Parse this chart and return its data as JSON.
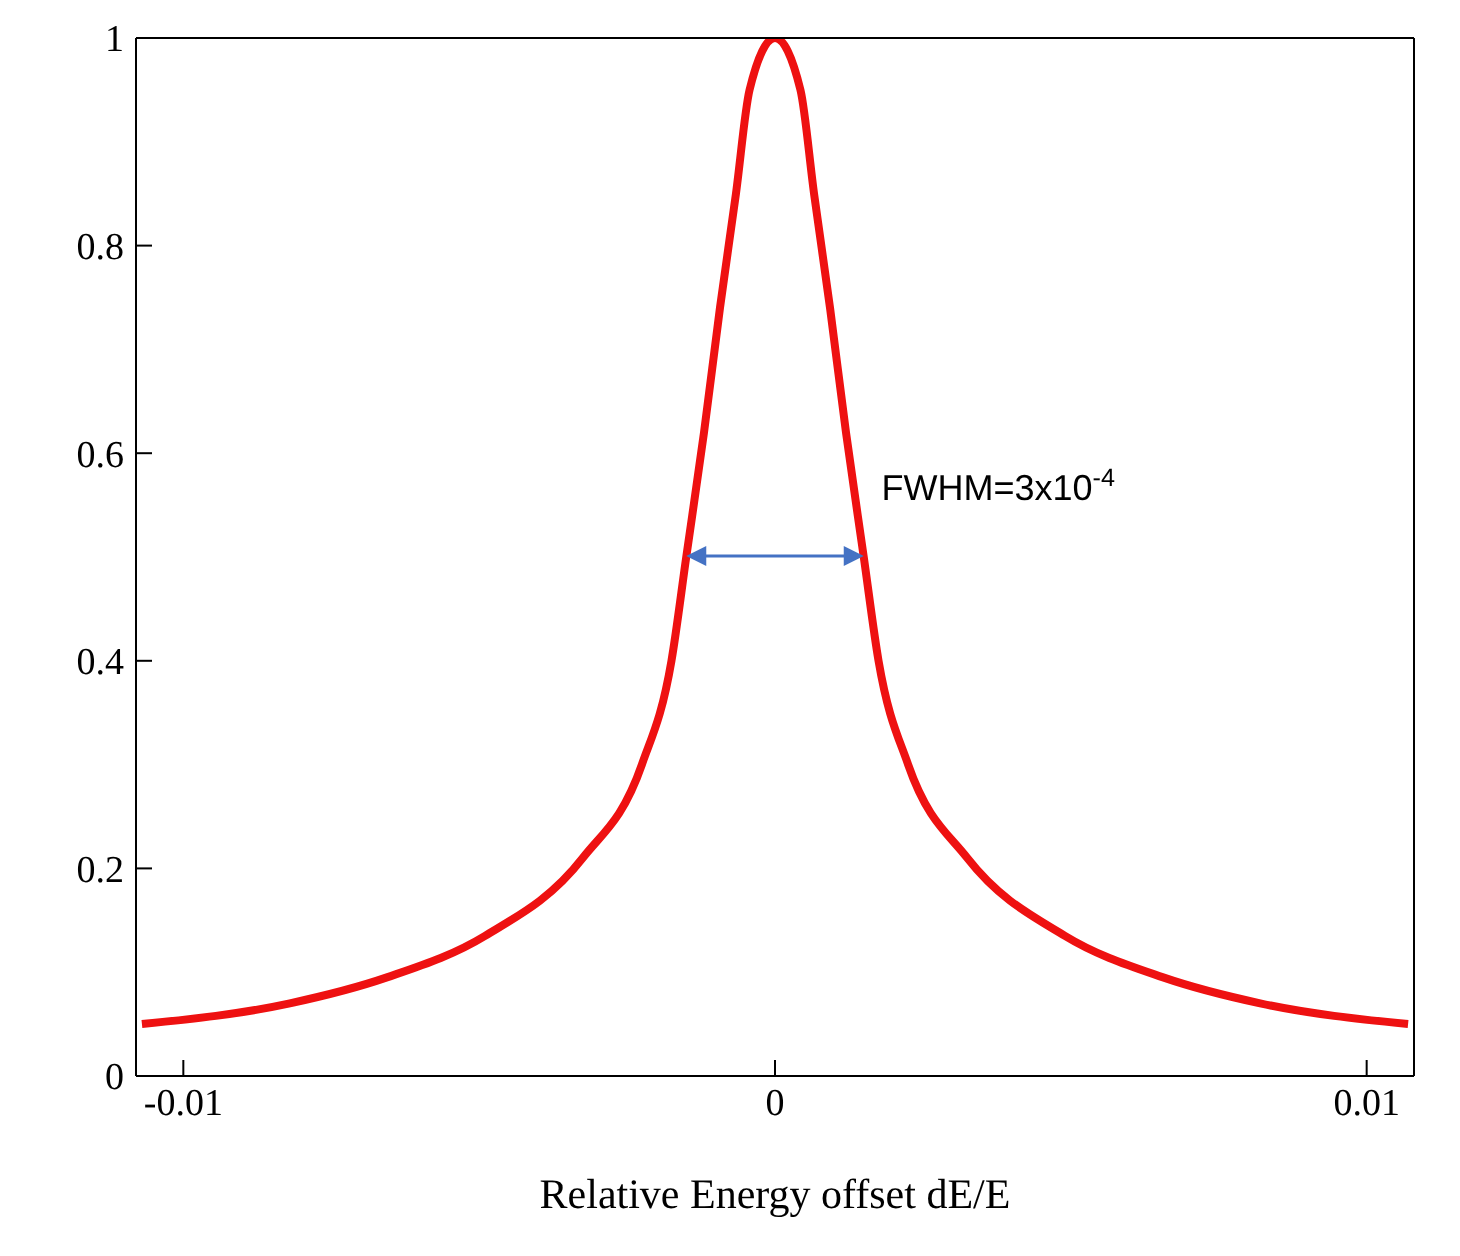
{
  "chart_data": {
    "type": "line",
    "xlabel": "Relative Energy offset dE/E",
    "x": [
      -0.0107,
      -0.0082,
      -0.00656,
      -0.0049,
      -0.00325,
      -0.00225,
      -0.00175,
      -0.0015,
      -0.0012,
      -0.00093,
      -0.00066,
      -0.00043,
      0,
      0.00043,
      0.00066,
      0.00093,
      0.0012,
      0.0015,
      0.00175,
      0.00225,
      0.00325,
      0.0049,
      0.00656,
      0.0082,
      0.0107
    ],
    "series": [
      {
        "color": "#ee1111",
        "values": [
          0.05,
          0.07,
          0.095,
          0.135,
          0.21,
          0.3,
          0.4,
          0.5,
          0.62,
          0.74,
          0.85,
          0.95,
          1,
          0.95,
          0.85,
          0.74,
          0.62,
          0.5,
          0.4,
          0.3,
          0.21,
          0.135,
          0.095,
          0.07,
          0.05
        ]
      }
    ],
    "xlim": [
      -0.0108,
      0.0108
    ],
    "xticks": [
      -0.01,
      0,
      0.01
    ],
    "ylim": [
      0,
      1
    ],
    "yticks": [
      0,
      0.2,
      0.4,
      0.6,
      0.8,
      1
    ],
    "marker": "none",
    "line_style": "solid",
    "annotations": [
      "FWHM=3x10$^{-4}$"
    ]
  }
}
